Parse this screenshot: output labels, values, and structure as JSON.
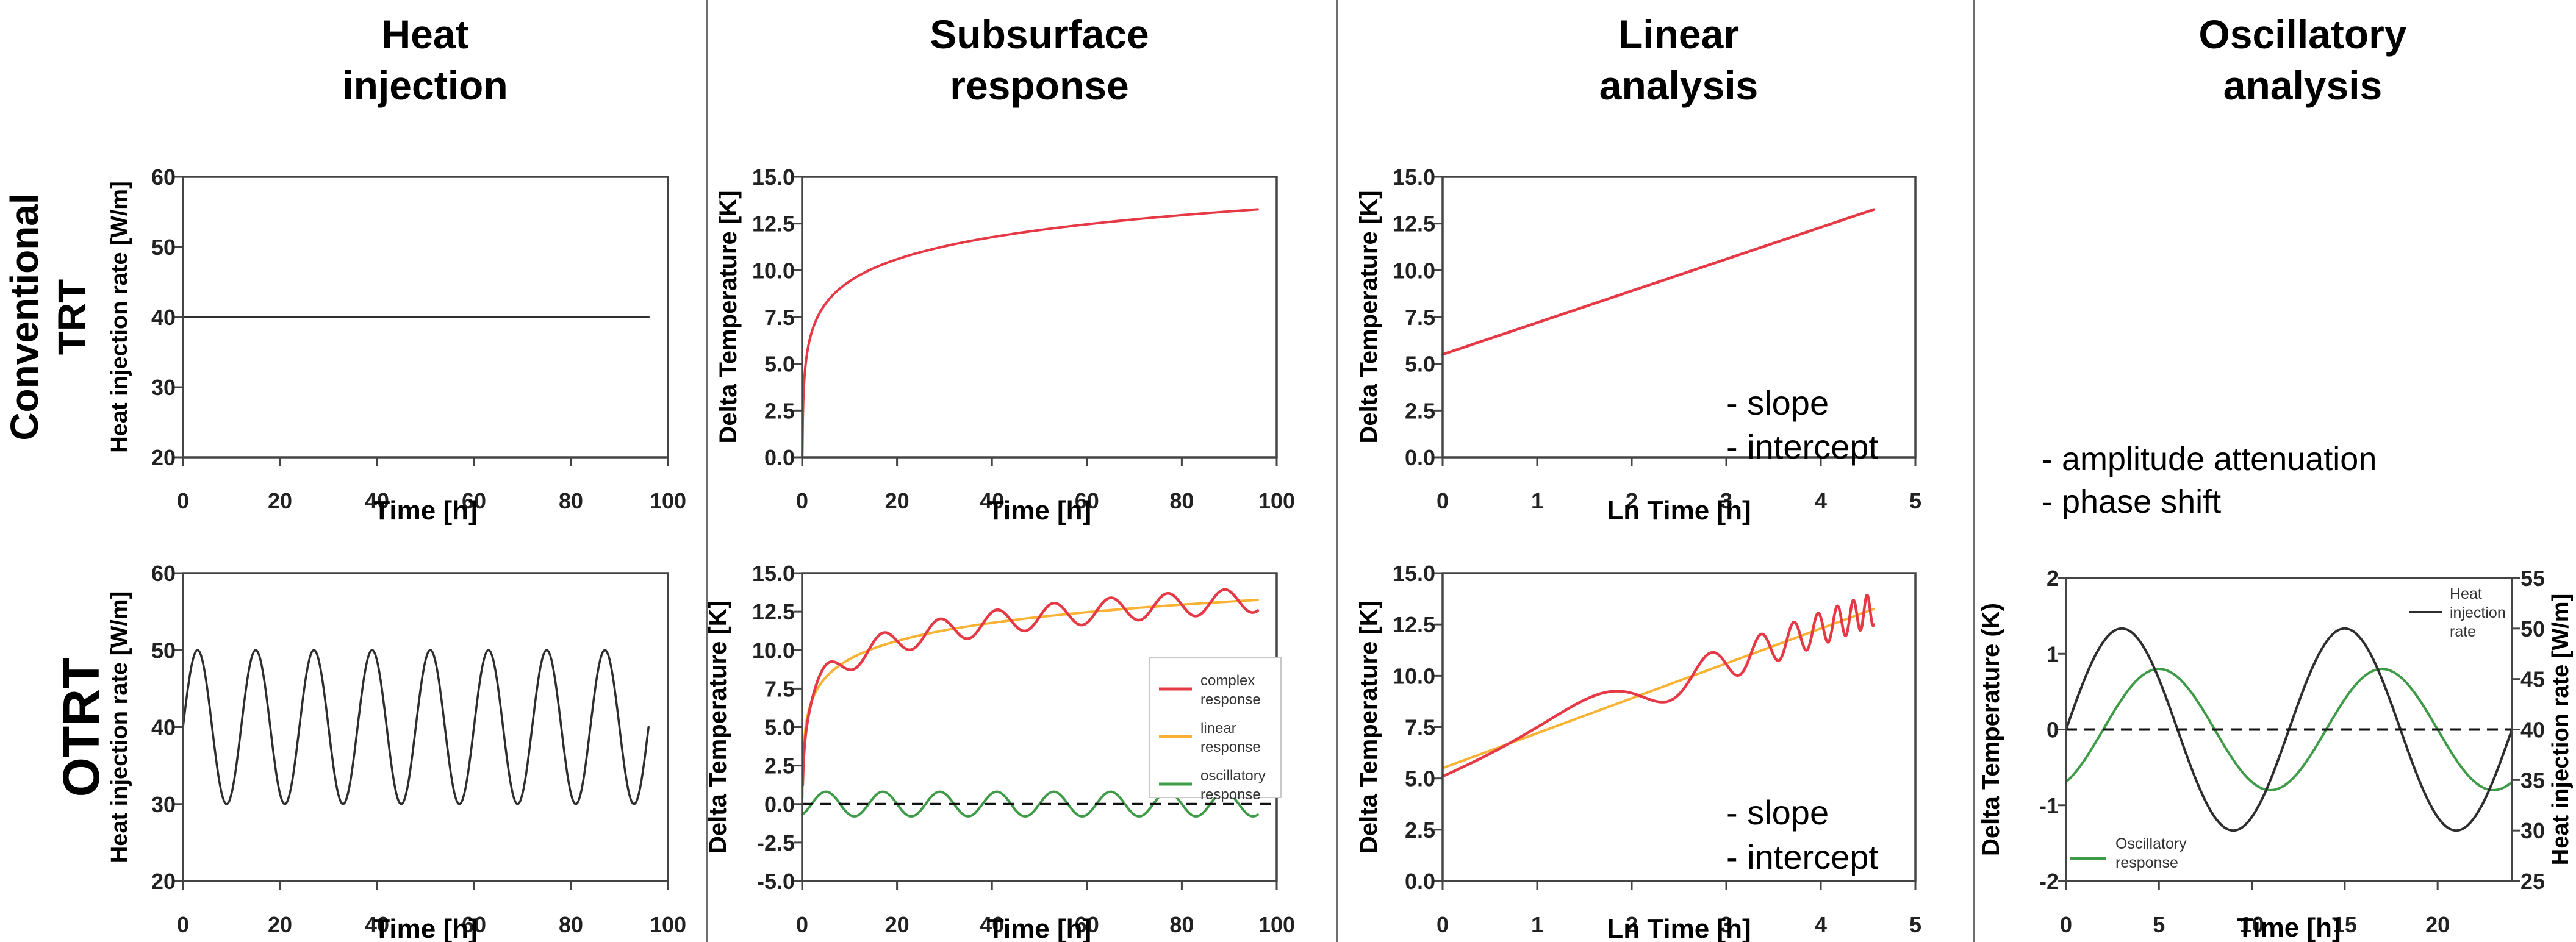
{
  "palette": {
    "red": "#e63946",
    "orange": "#f9b233",
    "green": "#3f9b48",
    "black": "#2e2e2e",
    "dashed_zero_line": "#111111",
    "frame": "#444444",
    "divider": "#6e6e6e"
  },
  "column_headers": [
    {
      "line1": "Heat",
      "line2": "injection"
    },
    {
      "line1": "Subsurface",
      "line2": "response"
    },
    {
      "line1": "Linear",
      "line2": "analysis"
    },
    {
      "line1": "Oscillatory",
      "line2": "analysis"
    }
  ],
  "row_labels": {
    "row1_line1": "Conventional",
    "row1_line2": "TRT",
    "row2": "OTRT"
  },
  "oscillatory_notes": {
    "note1": "- amplitude attenuation",
    "note2": "- phase shift"
  },
  "chart_data": [
    {
      "id": "conv_heat_injection",
      "type": "line",
      "title": "Conventional TRT - Heat injection",
      "xlabel": "Time [h]",
      "ylabel": "Heat injection rate [W/m]",
      "xlim": [
        0,
        100
      ],
      "ylim": [
        20,
        60
      ],
      "xticks": [
        0,
        20,
        40,
        60,
        80,
        100
      ],
      "yticks": [
        20,
        30,
        40,
        50,
        60
      ],
      "ytick_decimals": 0,
      "grid": false,
      "series": [
        {
          "name": "heat-injection-rate",
          "color": "black",
          "width": 3.5,
          "gen": {
            "kind": "constant",
            "value": 40,
            "x_start": 0,
            "x_end": 96
          }
        }
      ]
    },
    {
      "id": "conv_subsurface_response",
      "type": "line",
      "title": "Conventional TRT - Subsurface response",
      "xlabel": "Time [h]",
      "ylabel": "Delta Temperature [K]",
      "xlim": [
        0,
        100
      ],
      "ylim": [
        0,
        15
      ],
      "xticks": [
        0,
        20,
        40,
        60,
        80,
        100
      ],
      "yticks": [
        0,
        2.5,
        5,
        7.5,
        10,
        12.5,
        15
      ],
      "ytick_decimals": 1,
      "grid": false,
      "series": [
        {
          "name": "temperature-response",
          "color": "red",
          "width": 4,
          "gen": {
            "kind": "log",
            "intercept": 5.5,
            "slope": 1.7,
            "x_start": 0.04,
            "x_end": 96
          }
        }
      ]
    },
    {
      "id": "conv_linear_analysis",
      "type": "line",
      "title": "Conventional TRT - Linear analysis",
      "xlabel": "Ln Time [h]",
      "ylabel": "Delta Temperature [K]",
      "xlim": [
        0,
        5
      ],
      "ylim": [
        0,
        15
      ],
      "xticks": [
        0,
        1,
        2,
        3,
        4,
        5
      ],
      "yticks": [
        0,
        2.5,
        5,
        7.5,
        10,
        12.5,
        15
      ],
      "ytick_decimals": 1,
      "grid": false,
      "annotations": [
        "- slope",
        "- intercept"
      ],
      "series": [
        {
          "name": "linear-fit",
          "color": "red",
          "width": 4.5,
          "gen": {
            "kind": "linear",
            "intercept": 5.5,
            "slope": 1.7,
            "x_start": 0,
            "x_end": 4.56
          }
        }
      ]
    },
    {
      "id": "otrt_heat_injection",
      "type": "line",
      "title": "OTRT - Heat injection",
      "xlabel": "Time [h]",
      "ylabel": "Heat injection rate [W/m]",
      "xlim": [
        0,
        100
      ],
      "ylim": [
        20,
        60
      ],
      "xticks": [
        0,
        20,
        40,
        60,
        80,
        100
      ],
      "yticks": [
        20,
        30,
        40,
        50,
        60
      ],
      "ytick_decimals": 0,
      "grid": false,
      "series": [
        {
          "name": "oscillatory-heat-injection-rate",
          "color": "black",
          "width": 3.5,
          "gen": {
            "kind": "sine",
            "mean": 40,
            "amplitude": 10,
            "period": 12,
            "lag": 0,
            "x_start": 0,
            "x_end": 96
          }
        }
      ]
    },
    {
      "id": "otrt_subsurface_response",
      "type": "line",
      "title": "OTRT - Subsurface response",
      "xlabel": "Time [h]",
      "ylabel": "Delta Temperature [K]",
      "xlim": [
        0,
        100
      ],
      "ylim": [
        -5,
        15
      ],
      "xticks": [
        0,
        20,
        40,
        60,
        80,
        100
      ],
      "yticks": [
        -5,
        -2.5,
        0,
        2.5,
        5,
        7.5,
        10,
        12.5,
        15
      ],
      "ytick_decimals": 1,
      "grid": false,
      "zero_line": true,
      "legend": {
        "position": "center right",
        "items": [
          {
            "lines": [
              "complex",
              "response"
            ],
            "color": "red"
          },
          {
            "lines": [
              "linear",
              "response"
            ],
            "color": "orange"
          },
          {
            "lines": [
              "oscillatory",
              "response"
            ],
            "color": "green"
          }
        ]
      },
      "series": [
        {
          "name": "linear-response",
          "color": "orange",
          "width": 4,
          "gen": {
            "kind": "log",
            "intercept": 5.5,
            "slope": 1.7,
            "x_start": 0.05,
            "x_end": 96
          }
        },
        {
          "name": "complex-response",
          "color": "red",
          "width": 4.5,
          "gen": {
            "kind": "logsine",
            "intercept": 5.5,
            "slope": 1.7,
            "amplitude": 0.8,
            "period": 12,
            "lag": 2,
            "x_start": 0.12,
            "x_end": 96
          }
        },
        {
          "name": "oscillatory-response",
          "color": "green",
          "width": 4,
          "gen": {
            "kind": "sine",
            "mean": 0,
            "amplitude": 0.8,
            "period": 12,
            "lag": 2,
            "x_start": 0,
            "x_end": 96
          }
        }
      ]
    },
    {
      "id": "otrt_linear_analysis",
      "type": "line",
      "title": "OTRT - Linear analysis",
      "xlabel": "Ln Time [h]",
      "ylabel": "Delta Temperature [K]",
      "xlim": [
        0,
        5
      ],
      "ylim": [
        0,
        15
      ],
      "xticks": [
        0,
        1,
        2,
        3,
        4,
        5
      ],
      "yticks": [
        0,
        2.5,
        5,
        7.5,
        10,
        12.5,
        15
      ],
      "ytick_decimals": 1,
      "grid": false,
      "annotations": [
        "- slope",
        "- intercept"
      ],
      "series": [
        {
          "name": "linear-fit",
          "color": "orange",
          "width": 4,
          "gen": {
            "kind": "linear",
            "intercept": 5.5,
            "slope": 1.7,
            "x_start": 0,
            "x_end": 4.56
          }
        },
        {
          "name": "complex-response",
          "color": "red",
          "width": 4.5,
          "gen": {
            "kind": "lnsine",
            "intercept": 5.5,
            "slope": 1.7,
            "amplitude": 0.8,
            "period": 12,
            "lag": 2,
            "x_start": 0,
            "x_end": 4.56
          }
        }
      ]
    },
    {
      "id": "otrt_oscillatory_analysis",
      "type": "line",
      "title": "OTRT - Oscillatory analysis",
      "xlabel": "Time [h]",
      "ylabel": "Delta Temperature (K)",
      "ylabel_right": "Heat injection rate [W/m]",
      "xlim": [
        0,
        24
      ],
      "ylim": [
        -2,
        2
      ],
      "ylim_right": [
        25,
        55
      ],
      "xticks": [
        0,
        5,
        10,
        15,
        20
      ],
      "yticks": [
        -2,
        -1,
        0,
        1,
        2
      ],
      "yticks_right": [
        25,
        30,
        35,
        40,
        45,
        50,
        55
      ],
      "ytick_decimals": 0,
      "grid": false,
      "zero_line": true,
      "legend_heat": {
        "lines": [
          "Heat",
          "injection",
          "rate"
        ],
        "color": "black"
      },
      "legend_osc": {
        "lines": [
          "Oscillatory",
          "response"
        ],
        "color": "green"
      },
      "series": [
        {
          "name": "oscillatory-response",
          "axis": "left",
          "color": "green",
          "width": 4,
          "gen": {
            "kind": "sine",
            "mean": 0,
            "amplitude": 0.8,
            "period": 12,
            "lag": 2,
            "x_start": 0,
            "x_end": 24
          }
        },
        {
          "name": "heat-injection-rate",
          "axis": "right",
          "color": "black",
          "width": 4,
          "gen": {
            "kind": "sine",
            "mean": 40,
            "amplitude": 10,
            "period": 12,
            "lag": 0,
            "x_start": 0,
            "x_end": 24
          }
        }
      ]
    }
  ]
}
